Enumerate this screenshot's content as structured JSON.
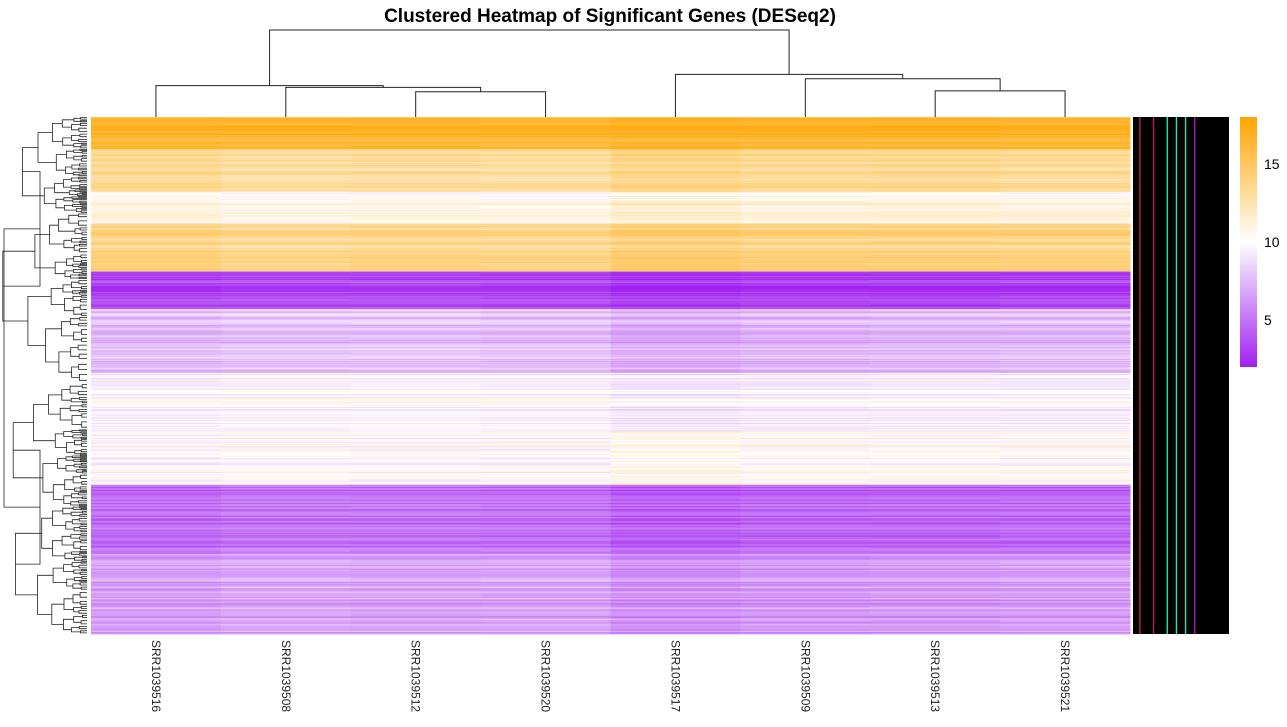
{
  "chart_data": {
    "type": "heatmap",
    "title": "Clustered Heatmap of Significant Genes (DESeq2)",
    "columns": [
      "SRR1039516",
      "SRR1039508",
      "SRR1039512",
      "SRR1039520",
      "SRR1039517",
      "SRR1039509",
      "SRR1039513",
      "SRR1039521"
    ],
    "color_scale": {
      "low": "#a020f0",
      "mid": "#ffffff",
      "high": "#ffa500",
      "min": 2,
      "mid_value": 10,
      "max": 18,
      "ticks": [
        "5",
        "10",
        "15"
      ],
      "tick_values": [
        5,
        10,
        15
      ]
    },
    "row_blocks": [
      {
        "rows": 30,
        "values": [
          16.5,
          16.4,
          16.5,
          16.4,
          16.7,
          16.6,
          16.6,
          16.5
        ]
      },
      {
        "rows": 40,
        "values": [
          13.2,
          12.8,
          12.9,
          12.8,
          13.6,
          13.2,
          13.3,
          13.1
        ]
      },
      {
        "rows": 30,
        "values": [
          10.8,
          10.4,
          10.6,
          10.5,
          11.3,
          10.9,
          11.0,
          10.8
        ]
      },
      {
        "rows": 45,
        "values": [
          13.8,
          13.4,
          13.6,
          13.5,
          14.2,
          13.9,
          13.9,
          13.8
        ]
      },
      {
        "rows": 35,
        "values": [
          3.2,
          3.4,
          3.4,
          3.3,
          2.7,
          3.0,
          3.0,
          3.1
        ]
      },
      {
        "rows": 60,
        "values": [
          7.6,
          7.8,
          7.8,
          7.7,
          7.0,
          7.3,
          7.4,
          7.5
        ]
      },
      {
        "rows": 55,
        "values": [
          9.7,
          9.9,
          9.9,
          9.8,
          9.3,
          9.5,
          9.6,
          9.6
        ]
      },
      {
        "rows": 50,
        "values": [
          9.9,
          10.1,
          10.0,
          10.0,
          10.6,
          10.3,
          10.3,
          10.2
        ]
      },
      {
        "rows": 65,
        "values": [
          4.6,
          4.9,
          4.9,
          4.8,
          4.1,
          4.4,
          4.4,
          4.5
        ]
      },
      {
        "rows": 75,
        "values": [
          6.6,
          6.9,
          6.8,
          6.8,
          6.1,
          6.4,
          6.5,
          6.6
        ]
      }
    ],
    "column_dendrogram": [
      {
        "left": 2,
        "right": 3,
        "height": 0.29
      },
      {
        "left": 1,
        "right": 8,
        "height": 0.34
      },
      {
        "left": 0,
        "right": 9,
        "height": 0.36
      },
      {
        "left": 6,
        "right": 7,
        "height": 0.3
      },
      {
        "left": 5,
        "right": 11,
        "height": 0.44
      },
      {
        "left": 4,
        "right": 12,
        "height": 0.49
      },
      {
        "left": 10,
        "right": 13,
        "height": 1.0
      }
    ],
    "row_annotation_colors": [
      "#000000",
      "#c2185b",
      "#000000",
      "#000000",
      "#c2185b",
      "#000000",
      "#000000",
      "#1de9b6",
      "#000000",
      "#1de9b6",
      "#000000",
      "#1de9b6",
      "#000000",
      "#9c27b0",
      "#000000",
      "#000000",
      "#000000",
      "#000000",
      "#000000",
      "#000000",
      "#000000"
    ],
    "legend": "right"
  }
}
